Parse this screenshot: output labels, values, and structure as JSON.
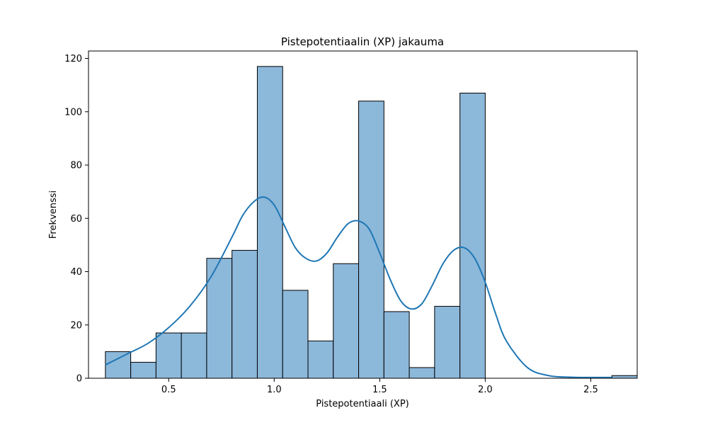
{
  "chart_data": {
    "type": "bar",
    "title": "Pistepotentiaalin (XP) jakauma",
    "xlabel": "Pistepotentiaali (XP)",
    "ylabel": "Frekvenssi",
    "xlim": [
      0.12,
      2.72
    ],
    "ylim": [
      0,
      122.8
    ],
    "xticks": [
      0.5,
      1.0,
      1.5,
      2.0,
      2.5
    ],
    "xtick_labels": [
      "0.5",
      "1.0",
      "1.5",
      "2.0",
      "2.5"
    ],
    "yticks": [
      0,
      20,
      40,
      60,
      80,
      100,
      120
    ],
    "ytick_labels": [
      "0",
      "20",
      "40",
      "60",
      "80",
      "100",
      "120"
    ],
    "bin_start": 0.2,
    "bin_width": 0.12,
    "values": [
      10,
      6,
      17,
      17,
      45,
      48,
      117,
      33,
      14,
      43,
      104,
      25,
      4,
      27,
      107,
      0,
      0,
      0,
      0,
      0,
      1
    ],
    "kde": {
      "x": [
        0.2,
        0.3,
        0.4,
        0.5,
        0.6,
        0.7,
        0.8,
        0.85,
        0.9,
        0.95,
        1.0,
        1.05,
        1.1,
        1.15,
        1.2,
        1.25,
        1.3,
        1.35,
        1.4,
        1.45,
        1.5,
        1.55,
        1.6,
        1.65,
        1.7,
        1.75,
        1.8,
        1.85,
        1.9,
        1.95,
        2.0,
        2.05,
        2.1,
        2.2,
        2.3,
        2.4,
        2.5,
        2.6
      ],
      "y": [
        5,
        9,
        13,
        19,
        27,
        38,
        53,
        61,
        66,
        68,
        65,
        57,
        49,
        45,
        44,
        47,
        53,
        58,
        59,
        56,
        47,
        37,
        29,
        26,
        28,
        35,
        43,
        48,
        49,
        45,
        36,
        24,
        14,
        4,
        1,
        0.4,
        0.3,
        0.3
      ]
    },
    "bar_fill": "#8cb8da",
    "bar_edge": "#000000",
    "kde_color": "#1f77b4",
    "grid": false,
    "legend": "none"
  }
}
